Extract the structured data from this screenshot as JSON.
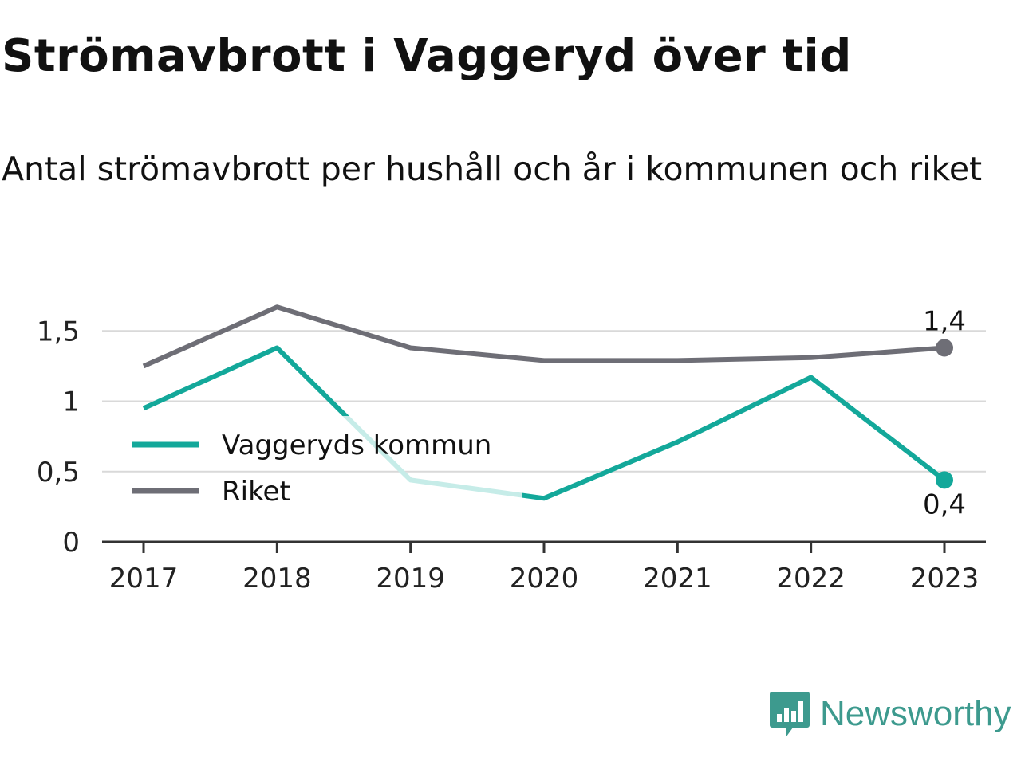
{
  "title": "Strömavbrott i Vaggeryd över tid",
  "subtitle": "Antal strömavbrott per hushåll och år i kommunen och riket",
  "brand": {
    "name": "Newsworthy",
    "icon": "newsworthy-logo-icon"
  },
  "colors": {
    "kommun": "#13a89a",
    "riket": "#6e6e76",
    "kommun_faded": "#c6ece8",
    "grid": "#d9d9d9",
    "axis": "#333333"
  },
  "chart_data": {
    "type": "line",
    "categories": [
      "2017",
      "2018",
      "2019",
      "2020",
      "2021",
      "2022",
      "2023"
    ],
    "ylim": [
      0,
      1.7
    ],
    "yticks": [
      {
        "value": 0,
        "label": "0"
      },
      {
        "value": 0.5,
        "label": "0,5"
      },
      {
        "value": 1,
        "label": "1"
      },
      {
        "value": 1.5,
        "label": "1,5"
      }
    ],
    "grid": true,
    "legend_position": "center-left",
    "series": [
      {
        "name": "Vaggeryds kommun",
        "values": [
          0.95,
          1.38,
          0.44,
          0.31,
          0.71,
          1.17,
          0.44
        ],
        "end_label": "0,4"
      },
      {
        "name": "Riket",
        "values": [
          1.25,
          1.67,
          1.38,
          1.29,
          1.29,
          1.31,
          1.38
        ],
        "end_label": "1,4"
      }
    ]
  }
}
